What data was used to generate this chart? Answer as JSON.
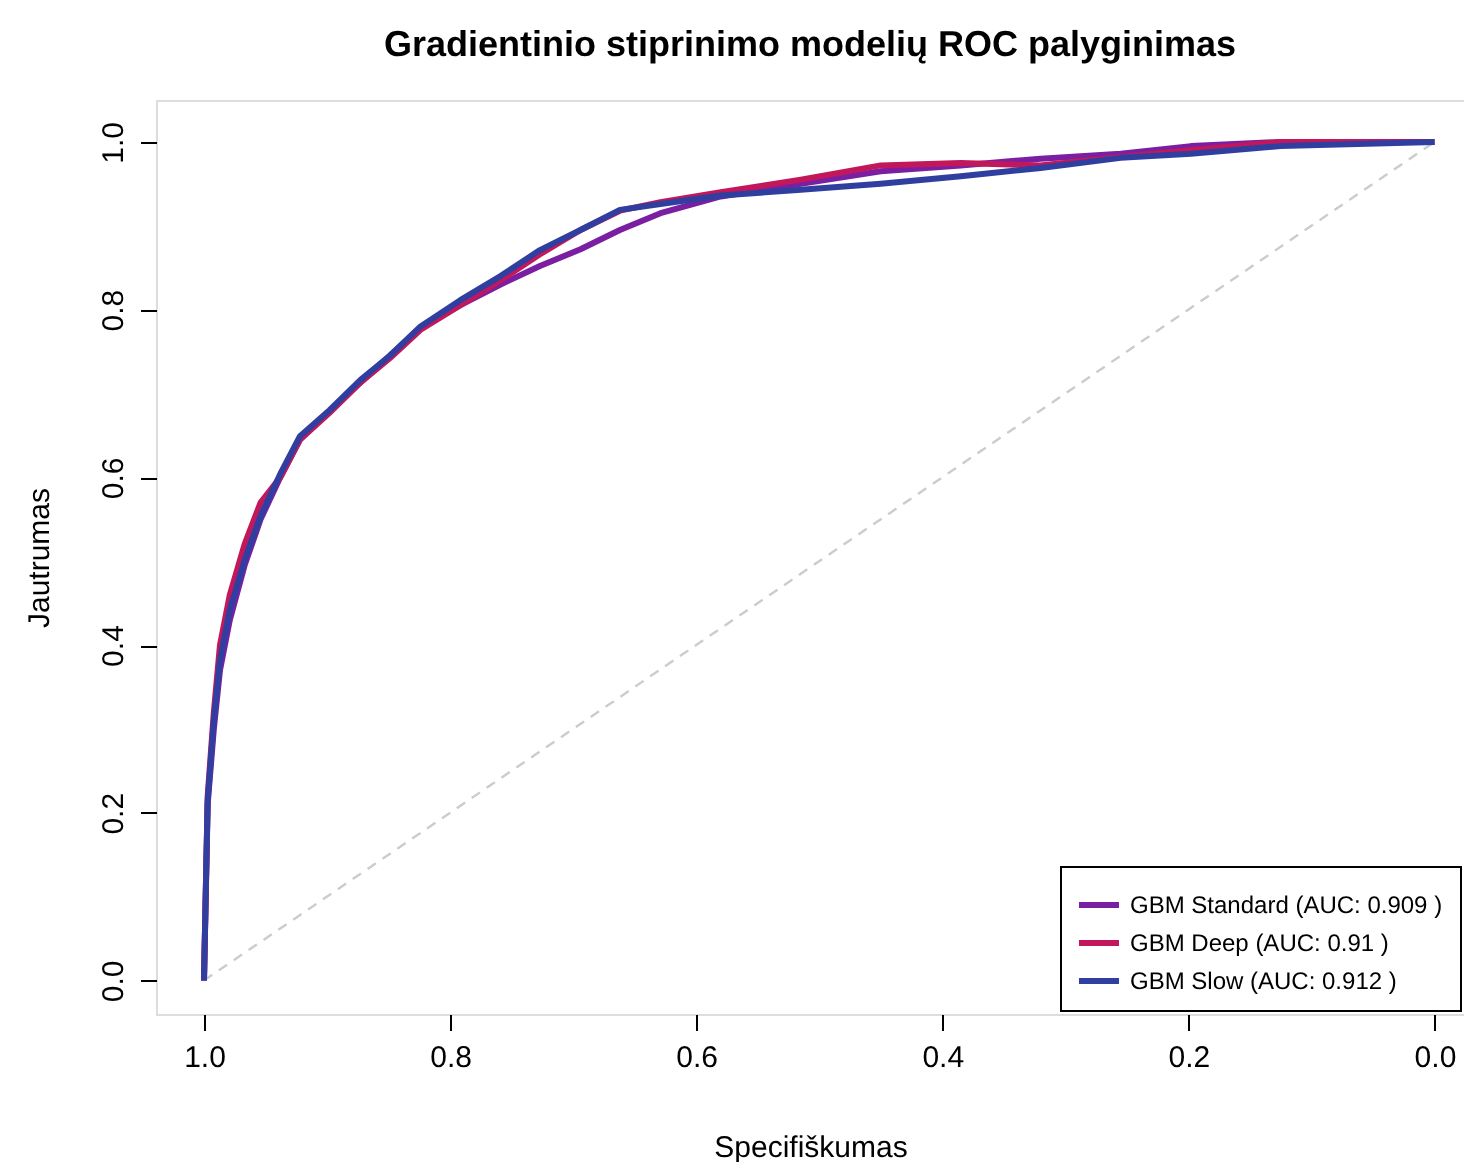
{
  "chart_data": {
    "type": "line",
    "title": "Gradientinio stiprinimo modelių ROC palyginimas",
    "xlabel": "Specifiškumas",
    "ylabel": "Jautrumas",
    "xlim": [
      1.039,
      -0.024
    ],
    "ylim": [
      -0.04,
      1.05
    ],
    "xticks": [
      {
        "value": 1,
        "label": "1.0"
      },
      0.8,
      0.6,
      0.4,
      0.2,
      {
        "value": 0,
        "label": "0.0"
      }
    ],
    "yticks": [
      {
        "value": 0,
        "label": "0.0"
      },
      0.2,
      0.4,
      0.6,
      0.8,
      {
        "value": 1,
        "label": "1.0"
      }
    ],
    "grid": false,
    "legend": "bottom right",
    "marker": "none",
    "series": [
      {
        "name": "GBM Standard (AUC: 0.909 )",
        "color": "#7b1fa2",
        "line_style": "solid",
        "x": [
          1.0,
          0.997,
          0.992,
          0.987,
          0.979,
          0.967,
          0.954,
          0.938,
          0.922,
          0.898,
          0.873,
          0.849,
          0.824,
          0.792,
          0.759,
          0.727,
          0.694,
          0.662,
          0.629,
          0.58,
          0.515,
          0.45,
          0.385,
          0.32,
          0.255,
          0.198,
          0.125,
          0.0
        ],
        "values": [
          0.0,
          0.21,
          0.3,
          0.37,
          0.43,
          0.495,
          0.55,
          0.6,
          0.645,
          0.678,
          0.713,
          0.745,
          0.778,
          0.805,
          0.83,
          0.852,
          0.872,
          0.895,
          0.915,
          0.935,
          0.95,
          0.965,
          0.972,
          0.98,
          0.986,
          0.995,
          1.0,
          1.0
        ]
      },
      {
        "name": "GBM Deep (AUC: 0.91 )",
        "color": "#c2185b",
        "line_style": "solid",
        "x": [
          1.0,
          0.997,
          0.992,
          0.987,
          0.979,
          0.967,
          0.954,
          0.938,
          0.922,
          0.898,
          0.873,
          0.849,
          0.824,
          0.792,
          0.759,
          0.727,
          0.694,
          0.662,
          0.629,
          0.58,
          0.515,
          0.45,
          0.385,
          0.32,
          0.255,
          0.198,
          0.125,
          0.0
        ],
        "values": [
          0.0,
          0.22,
          0.32,
          0.4,
          0.46,
          0.52,
          0.57,
          0.6,
          0.645,
          0.677,
          0.713,
          0.742,
          0.776,
          0.805,
          0.835,
          0.866,
          0.895,
          0.918,
          0.928,
          0.94,
          0.955,
          0.972,
          0.975,
          0.972,
          0.982,
          0.99,
          1.0,
          1.0
        ]
      },
      {
        "name": "GBM Slow  (AUC: 0.912 )",
        "color": "#303f9f",
        "line_style": "solid",
        "x": [
          1.0,
          0.997,
          0.992,
          0.987,
          0.979,
          0.967,
          0.954,
          0.938,
          0.922,
          0.898,
          0.873,
          0.849,
          0.824,
          0.792,
          0.759,
          0.727,
          0.694,
          0.662,
          0.629,
          0.58,
          0.515,
          0.45,
          0.385,
          0.32,
          0.255,
          0.198,
          0.125,
          0.0
        ],
        "values": [
          0.0,
          0.215,
          0.31,
          0.382,
          0.442,
          0.501,
          0.554,
          0.604,
          0.649,
          0.68,
          0.716,
          0.745,
          0.78,
          0.811,
          0.84,
          0.871,
          0.895,
          0.919,
          0.926,
          0.936,
          0.943,
          0.95,
          0.959,
          0.969,
          0.981,
          0.986,
          0.995,
          1.0
        ]
      },
      {
        "color": "#cccccc",
        "line_style": "dashed",
        "x": [
          1.0,
          0.0
        ],
        "values": [
          0.0,
          1.0
        ]
      }
    ]
  }
}
